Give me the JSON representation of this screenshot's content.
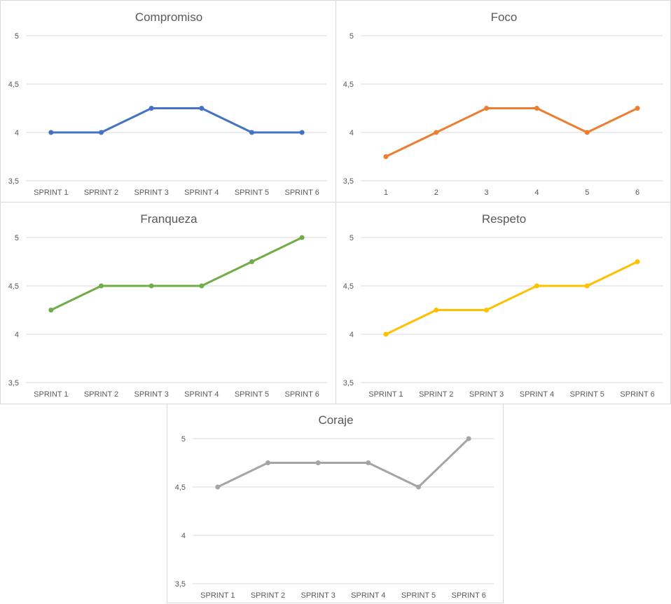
{
  "chart_data": [
    {
      "type": "line",
      "title": "Compromiso",
      "categories": [
        "SPRINT 1",
        "SPRINT 2",
        "SPRINT 3",
        "SPRINT 4",
        "SPRINT 5",
        "SPRINT 6"
      ],
      "series": [
        {
          "values": [
            4,
            4,
            4.25,
            4.25,
            4,
            4
          ],
          "color": "#4472c4"
        }
      ],
      "ylim": [
        3.5,
        5
      ],
      "yticks": [
        3.5,
        4,
        4.5,
        5
      ],
      "ytick_labels": [
        "3,5",
        "4",
        "4,5",
        "5"
      ],
      "grid": true,
      "legend": "none"
    },
    {
      "type": "line",
      "title": "Foco",
      "categories": [
        "1",
        "2",
        "3",
        "4",
        "5",
        "6"
      ],
      "series": [
        {
          "values": [
            3.75,
            4,
            4.25,
            4.25,
            4,
            4.25
          ],
          "color": "#ed7d31"
        }
      ],
      "ylim": [
        3.5,
        5
      ],
      "yticks": [
        3.5,
        4,
        4.5,
        5
      ],
      "ytick_labels": [
        "3,5",
        "4",
        "4,5",
        "5"
      ],
      "grid": true,
      "legend": "none"
    },
    {
      "type": "line",
      "title": "Franqueza",
      "categories": [
        "SPRINT 1",
        "SPRINT 2",
        "SPRINT 3",
        "SPRINT 4",
        "SPRINT 5",
        "SPRINT 6"
      ],
      "series": [
        {
          "values": [
            4.25,
            4.5,
            4.5,
            4.5,
            4.75,
            5
          ],
          "color": "#70ad47"
        }
      ],
      "ylim": [
        3.5,
        5
      ],
      "yticks": [
        3.5,
        4,
        4.5,
        5
      ],
      "ytick_labels": [
        "3,5",
        "4",
        "4,5",
        "5"
      ],
      "grid": true,
      "legend": "none"
    },
    {
      "type": "line",
      "title": "Respeto",
      "categories": [
        "SPRINT 1",
        "SPRINT 2",
        "SPRINT 3",
        "SPRINT 4",
        "SPRINT 5",
        "SPRINT 6"
      ],
      "series": [
        {
          "values": [
            4,
            4.25,
            4.25,
            4.5,
            4.5,
            4.75
          ],
          "color": "#ffc000"
        }
      ],
      "ylim": [
        3.5,
        5
      ],
      "yticks": [
        3.5,
        4,
        4.5,
        5
      ],
      "ytick_labels": [
        "3,5",
        "4",
        "4,5",
        "5"
      ],
      "grid": true,
      "legend": "none"
    },
    {
      "type": "line",
      "title": "Coraje",
      "categories": [
        "SPRINT 1",
        "SPRINT 2",
        "SPRINT 3",
        "SPRINT 4",
        "SPRINT 5",
        "SPRINT 6"
      ],
      "series": [
        {
          "values": [
            4.5,
            4.75,
            4.75,
            4.75,
            4.5,
            5
          ],
          "color": "#a5a5a5"
        }
      ],
      "ylim": [
        3.5,
        5
      ],
      "yticks": [
        3.5,
        4,
        4.5,
        5
      ],
      "ytick_labels": [
        "3,5",
        "4",
        "4,5",
        "5"
      ],
      "grid": true,
      "legend": "none"
    }
  ]
}
